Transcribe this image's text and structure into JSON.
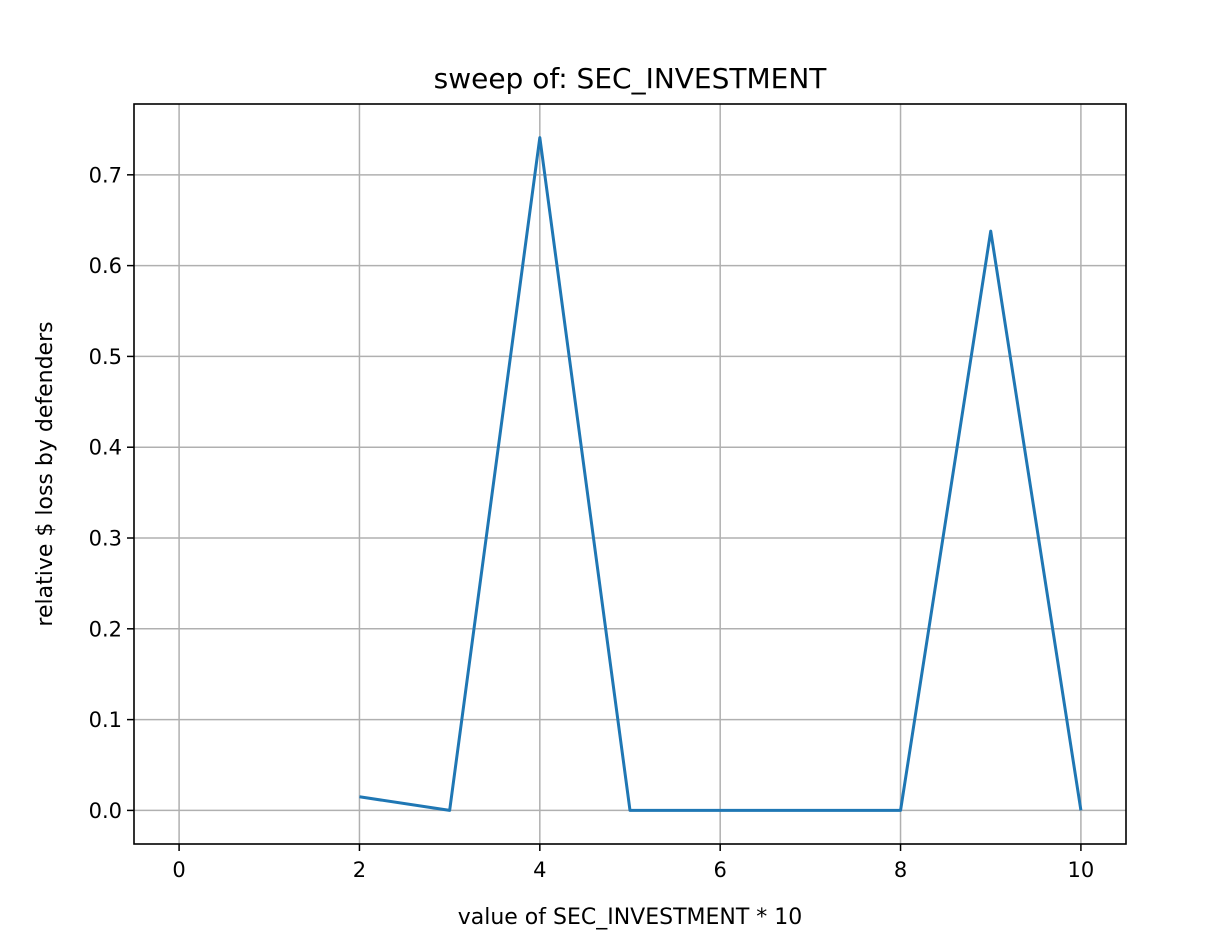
{
  "chart_data": {
    "type": "line",
    "title": "sweep of: SEC_INVESTMENT",
    "xlabel": "value of SEC_INVESTMENT * 10",
    "ylabel": "relative $ loss by defenders",
    "xlim": [
      -0.5,
      10.5
    ],
    "ylim": [
      -0.037,
      0.778
    ],
    "xticks": [
      0,
      2,
      4,
      6,
      8,
      10
    ],
    "xtick_labels": [
      "0",
      "2",
      "4",
      "6",
      "8",
      "10"
    ],
    "yticks": [
      0.0,
      0.1,
      0.2,
      0.3,
      0.4,
      0.5,
      0.6,
      0.7
    ],
    "ytick_labels": [
      "0.0",
      "0.1",
      "0.2",
      "0.3",
      "0.4",
      "0.5",
      "0.6",
      "0.7"
    ],
    "grid": true,
    "series": [
      {
        "color": "#1f77b4",
        "x": [
          2,
          3,
          4,
          5,
          6,
          7,
          8,
          9,
          10
        ],
        "y": [
          0.015,
          0.0,
          0.741,
          0.0,
          0.0,
          0.0,
          0.0,
          0.638,
          0.0
        ]
      }
    ]
  }
}
